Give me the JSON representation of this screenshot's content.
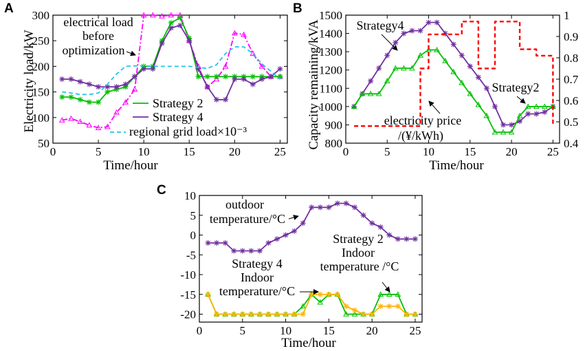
{
  "chart_data": [
    {
      "id": "A",
      "panel_label": "A",
      "type": "line",
      "title": "",
      "xlabel": "Time/hour",
      "ylabel": "Electricity load/kW",
      "xlim": [
        0,
        25.8
      ],
      "ylim": [
        50,
        300
      ],
      "xticks": [
        0,
        5,
        10,
        15,
        20,
        25
      ],
      "yticks": [
        50,
        100,
        150,
        200,
        250,
        300
      ],
      "grid": false,
      "legend_position": "bottom-right",
      "series": [
        {
          "name": "electrical load before optimization",
          "color": "#ff00ff",
          "style": "dashdot",
          "marker": "triangle",
          "x": [
            1,
            2,
            3,
            4,
            5,
            6,
            7,
            8,
            9,
            10,
            11,
            12,
            13,
            14,
            15,
            16,
            17,
            18,
            19,
            20,
            21,
            22,
            23,
            24,
            25
          ],
          "y": [
            95,
            98,
            92,
            85,
            80,
            82,
            110,
            130,
            155,
            300,
            300,
            298,
            300,
            300,
            250,
            200,
            160,
            175,
            200,
            265,
            262,
            225,
            200,
            180,
            180
          ]
        },
        {
          "name": "Strategy 2",
          "color": "#00c000",
          "style": "solid",
          "marker": "asterisk",
          "x": [
            1,
            2,
            3,
            4,
            5,
            6,
            7,
            8,
            9,
            10,
            11,
            12,
            13,
            14,
            15,
            16,
            17,
            18,
            19,
            20,
            21,
            22,
            23,
            24,
            25
          ],
          "y": [
            140,
            140,
            135,
            130,
            130,
            150,
            155,
            160,
            180,
            200,
            200,
            250,
            285,
            295,
            255,
            180,
            180,
            180,
            180,
            180,
            180,
            180,
            180,
            180,
            180
          ]
        },
        {
          "name": "Strategy 4",
          "color": "#7030a0",
          "style": "solid",
          "marker": "asterisk",
          "x": [
            1,
            2,
            3,
            4,
            5,
            6,
            7,
            8,
            9,
            10,
            11,
            12,
            13,
            14,
            15,
            16,
            17,
            18,
            19,
            20,
            21,
            22,
            23,
            24,
            25
          ],
          "y": [
            175,
            175,
            170,
            165,
            160,
            160,
            160,
            165,
            180,
            195,
            195,
            245,
            275,
            280,
            250,
            195,
            160,
            135,
            135,
            175,
            175,
            165,
            175,
            180,
            195
          ]
        },
        {
          "name": "regional grid load×10⁻³",
          "color": "#21c4e8",
          "style": "dashed",
          "marker": "none",
          "x": [
            1,
            2,
            3,
            4,
            5,
            6,
            7,
            8,
            9,
            10,
            11,
            12,
            13,
            14,
            15,
            16,
            17,
            18,
            19,
            20,
            21,
            22,
            23,
            24,
            25
          ],
          "y": [
            150,
            148,
            145,
            145,
            148,
            165,
            185,
            200,
            201,
            201,
            200,
            200,
            200,
            200,
            200,
            198,
            196,
            203,
            225,
            238,
            238,
            225,
            205,
            190,
            175
          ]
        }
      ],
      "annotations": [
        {
          "text": "electrical load",
          "points_to": "magenta curve"
        },
        {
          "text": "before"
        },
        {
          "text": "optimization"
        }
      ]
    },
    {
      "id": "B",
      "panel_label": "B",
      "type": "line",
      "title": "",
      "xlabel": "Time/hour",
      "ylabel": "Capacity remaining/kVA",
      "y2label": "",
      "xlim": [
        0,
        25.8
      ],
      "ylim": [
        800,
        1500
      ],
      "y2lim": [
        0.4,
        1.0
      ],
      "xticks": [
        0,
        5,
        10,
        15,
        20,
        25
      ],
      "yticks": [
        800,
        900,
        1000,
        1100,
        1200,
        1300,
        1400,
        1500
      ],
      "y2ticks": [
        "0.4",
        "0.5",
        "0.6",
        "0.7",
        "0.8",
        "0.9",
        "1"
      ],
      "grid": false,
      "series": [
        {
          "name": "Strategy4",
          "color": "#7030a0",
          "style": "solid",
          "marker": "asterisk",
          "axis": "left",
          "x": [
            1,
            2,
            3,
            4,
            5,
            6,
            7,
            8,
            9,
            10,
            11,
            12,
            13,
            14,
            15,
            16,
            17,
            18,
            19,
            20,
            21,
            22,
            23,
            24,
            25
          ],
          "y": [
            1000,
            1070,
            1140,
            1210,
            1280,
            1350,
            1400,
            1415,
            1415,
            1460,
            1460,
            1400,
            1340,
            1280,
            1220,
            1160,
            1100,
            1000,
            900,
            900,
            920,
            960,
            960,
            970,
            1000
          ]
        },
        {
          "name": "Strategy2",
          "color": "#00c000",
          "style": "solid",
          "marker": "triangle",
          "axis": "left",
          "x": [
            1,
            2,
            3,
            4,
            5,
            6,
            7,
            8,
            9,
            10,
            11,
            12,
            13,
            14,
            15,
            16,
            17,
            18,
            19,
            20,
            21,
            22,
            23,
            24,
            25
          ],
          "y": [
            1000,
            1070,
            1070,
            1070,
            1140,
            1210,
            1210,
            1210,
            1280,
            1310,
            1310,
            1250,
            1190,
            1130,
            1070,
            1010,
            950,
            860,
            860,
            860,
            950,
            1000,
            1000,
            1000,
            1000
          ]
        },
        {
          "name": "electricity price",
          "unit": "/(¥/kWh)",
          "color": "#ff0000",
          "style": "dashed",
          "marker": "none",
          "axis": "right",
          "x": [
            1,
            9,
            9,
            10,
            10,
            11,
            11,
            14,
            14,
            16,
            16,
            18,
            18,
            21,
            21,
            23,
            23,
            25,
            25
          ],
          "y": [
            0.48,
            0.48,
            0.75,
            0.75,
            0.91,
            0.91,
            0.91,
            0.91,
            0.97,
            0.97,
            0.75,
            0.75,
            0.97,
            0.97,
            0.84,
            0.84,
            0.81,
            0.81,
            0.48
          ]
        }
      ],
      "annotations": [
        {
          "text": "Strategy4"
        },
        {
          "text": "Strategy2"
        },
        {
          "text": "electricity price"
        },
        {
          "text": "/(¥/kWh)"
        }
      ]
    },
    {
      "id": "C",
      "panel_label": "C",
      "type": "line",
      "title": "",
      "xlabel": "Time/hour",
      "ylabel": "",
      "xlim": [
        0,
        25.8
      ],
      "ylim": [
        -22,
        10
      ],
      "xticks": [
        0,
        5,
        10,
        15,
        20,
        25
      ],
      "yticks": [
        -20,
        -15,
        -10,
        -5,
        0,
        5,
        10
      ],
      "grid": false,
      "series": [
        {
          "name": "outdoor temperature/°C",
          "color": "#7030a0",
          "style": "solid",
          "marker": "asterisk",
          "x": [
            1,
            2,
            3,
            4,
            5,
            6,
            7,
            8,
            9,
            10,
            11,
            12,
            13,
            14,
            15,
            16,
            17,
            18,
            19,
            20,
            21,
            22,
            23,
            24,
            25
          ],
          "y": [
            -2,
            -2,
            -2,
            -4,
            -4,
            -4,
            -4,
            -2,
            -1,
            0,
            1,
            3,
            7,
            7,
            7,
            8,
            8,
            7,
            5,
            3,
            2,
            0,
            -1,
            -1,
            -1
          ]
        },
        {
          "name": "Strategy 2 Indoor temperature /°C",
          "color": "#00c000",
          "style": "solid",
          "marker": "triangle",
          "x": [
            1,
            2,
            3,
            4,
            5,
            6,
            7,
            8,
            9,
            10,
            11,
            12,
            13,
            14,
            15,
            16,
            17,
            18,
            19,
            20,
            21,
            22,
            23,
            24,
            25
          ],
          "y": [
            -15,
            -20,
            -20,
            -20,
            -20,
            -20,
            -20,
            -20,
            -20,
            -20,
            -20,
            -18,
            -15,
            -17,
            -15,
            -15,
            -20,
            -20,
            -20,
            -20,
            -15,
            -15,
            -15,
            -20,
            -20
          ]
        },
        {
          "name": "Strategy 4 Indoor temperature/°C",
          "color": "#ffb300",
          "style": "solid",
          "marker": "asterisk",
          "x": [
            1,
            2,
            3,
            4,
            5,
            6,
            7,
            8,
            9,
            10,
            11,
            12,
            13,
            14,
            15,
            16,
            17,
            18,
            19,
            20,
            21,
            22,
            23,
            24,
            25
          ],
          "y": [
            -15,
            -20,
            -20,
            -20,
            -20,
            -20,
            -20,
            -20,
            -20,
            -20,
            -20,
            -20,
            -15,
            -15,
            -15,
            -15,
            -18,
            -19,
            -20,
            -20,
            -18,
            -18,
            -18,
            -20,
            -20
          ]
        }
      ],
      "annotations": [
        {
          "text": "outdoor"
        },
        {
          "text": "temperature/°C"
        },
        {
          "text": "Strategy 2"
        },
        {
          "text": "Indoor"
        },
        {
          "text": "temperature /°C"
        },
        {
          "text": "Strategy 4"
        },
        {
          "text": "Indoor"
        },
        {
          "text": "temperature/°C"
        }
      ]
    }
  ]
}
